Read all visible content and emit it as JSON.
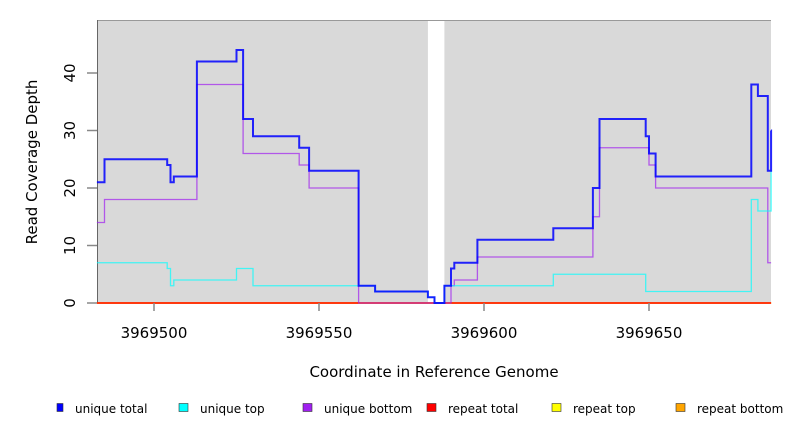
{
  "chart_data": {
    "type": "line",
    "step": true,
    "title": "",
    "xlabel": "Coordinate in Reference Genome",
    "ylabel": "Read Coverage Depth",
    "xlim": [
      3969482.7,
      3969687
    ],
    "ylim": [
      0,
      49.2
    ],
    "x_ticks": [
      3969500,
      3969550,
      3969600,
      3969650
    ],
    "x_tick_labels": [
      "3969500",
      "3969550",
      "3969600",
      "3969650"
    ],
    "y_ticks": [
      0,
      10,
      20,
      30,
      40
    ],
    "y_tick_labels": [
      "0",
      "10",
      "20",
      "30",
      "40"
    ],
    "grid": false,
    "background": "#d9d9d9",
    "gap_region": [
      3969583,
      3969588
    ],
    "legend_position": "bottom",
    "x": [
      3969482.7,
      3969485,
      3969504,
      3969505,
      3969506,
      3969513,
      3969525,
      3969527,
      3969530,
      3969544,
      3969547,
      3969562,
      3969567,
      3969583,
      3969585,
      3969588,
      3969590,
      3969591,
      3969598,
      3969621,
      3969633,
      3969635,
      3969649,
      3969650,
      3969652,
      3969681,
      3969683,
      3969686,
      3969687
    ],
    "series": [
      {
        "name": "unique total",
        "color": "#0000ff",
        "values": [
          21,
          25,
          24,
          21,
          22,
          42,
          44,
          32,
          29,
          27,
          23,
          3,
          2,
          1,
          0,
          3,
          6,
          7,
          11,
          13,
          20,
          32,
          29,
          26,
          22,
          38,
          36,
          23,
          30
        ]
      },
      {
        "name": "unique top",
        "color": "#00ffff",
        "values": [
          7,
          7,
          6,
          3,
          4,
          4,
          6,
          6,
          3,
          3,
          3,
          3,
          2,
          1,
          0,
          3,
          3,
          3,
          3,
          5,
          5,
          5,
          2,
          2,
          2,
          18,
          16,
          16,
          23
        ]
      },
      {
        "name": "unique bottom",
        "color": "#a020f0",
        "values": [
          14,
          18,
          18,
          18,
          18,
          38,
          38,
          26,
          26,
          24,
          20,
          0,
          0,
          0,
          0,
          0,
          3,
          4,
          8,
          8,
          15,
          27,
          27,
          24,
          20,
          20,
          20,
          7,
          7
        ]
      },
      {
        "name": "repeat total",
        "color": "#ff0000",
        "values": [
          0,
          0,
          0,
          0,
          0,
          0,
          0,
          0,
          0,
          0,
          0,
          0,
          0,
          0,
          0,
          0,
          0,
          0,
          0,
          0,
          0,
          0,
          0,
          0,
          0,
          0,
          0,
          0,
          0
        ]
      },
      {
        "name": "repeat top",
        "color": "#ffff00",
        "values": [
          0,
          0,
          0,
          0,
          0,
          0,
          0,
          0,
          0,
          0,
          0,
          0,
          0,
          0,
          0,
          0,
          0,
          0,
          0,
          0,
          0,
          0,
          0,
          0,
          0,
          0,
          0,
          0,
          0
        ]
      },
      {
        "name": "repeat bottom",
        "color": "#ffa500",
        "values": [
          0,
          0,
          0,
          0,
          0,
          0,
          0,
          0,
          0,
          0,
          0,
          0,
          0,
          0,
          0,
          0,
          0,
          0,
          0,
          0,
          0,
          0,
          0,
          0,
          0,
          0,
          0,
          0,
          0
        ]
      }
    ]
  }
}
